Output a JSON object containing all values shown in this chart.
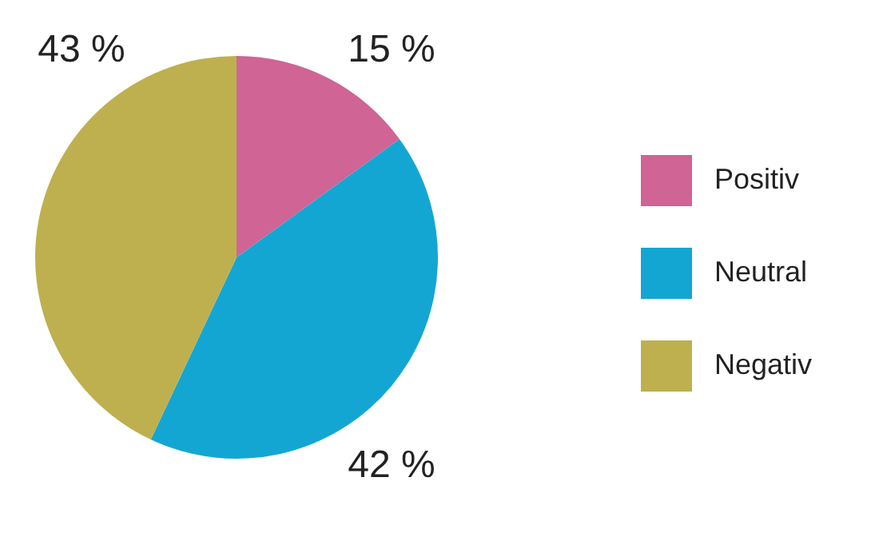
{
  "chart_data": {
    "type": "pie",
    "categories": [
      "Positiv",
      "Neutral",
      "Negativ"
    ],
    "values": [
      15,
      42,
      43
    ],
    "value_labels": [
      "15 %",
      "42 %",
      "43 %"
    ],
    "colors": [
      "#cf6495",
      "#14a6d2",
      "#beb04e"
    ],
    "legend": "right"
  }
}
